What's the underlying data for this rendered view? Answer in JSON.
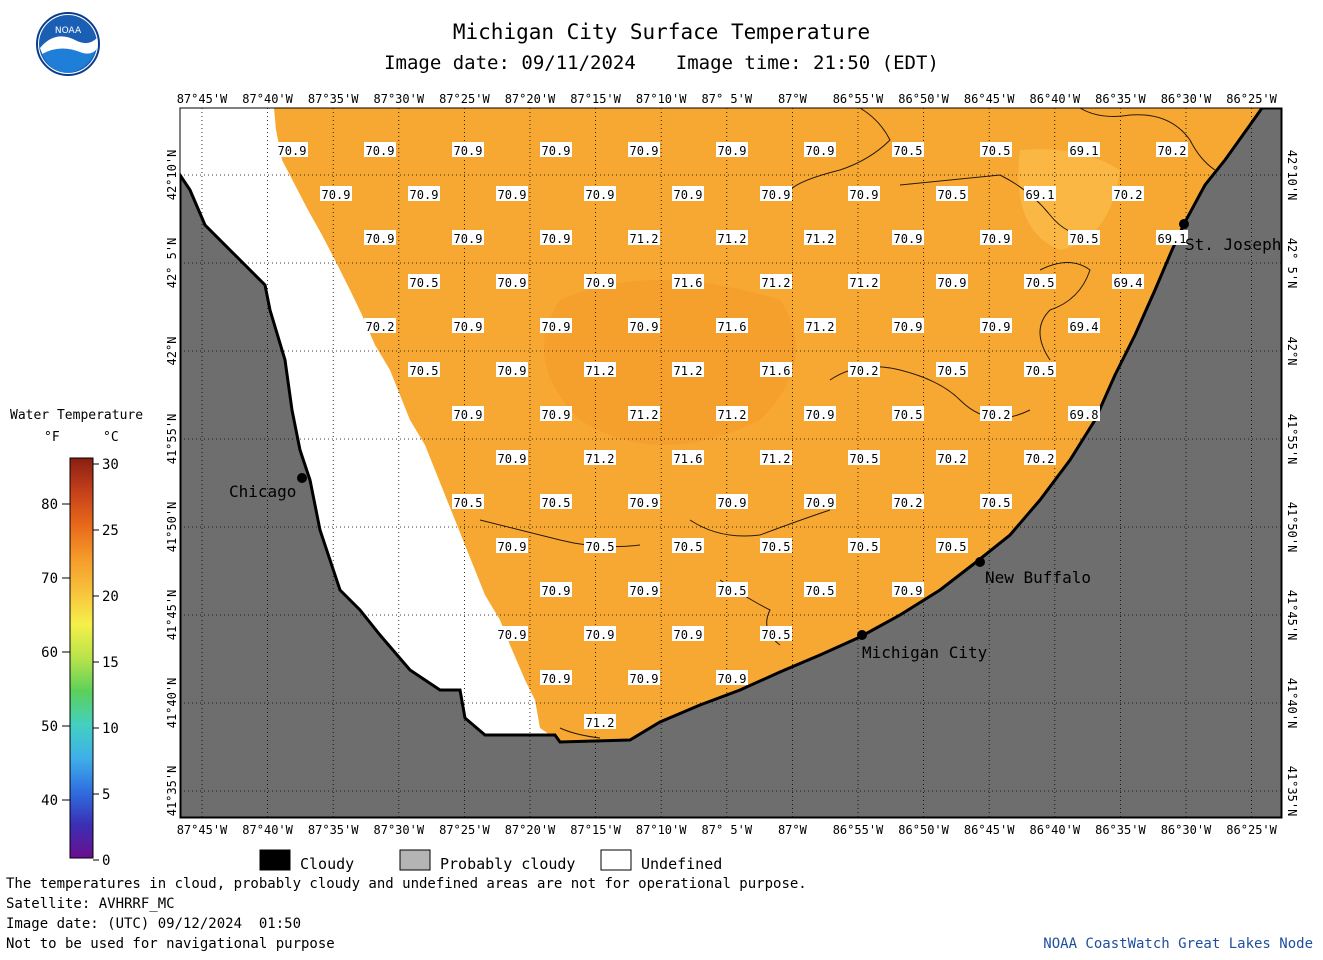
{
  "header": {
    "title": "Michigan City Surface Temperature",
    "image_date": "Image date: 09/11/2024",
    "image_time": "Image time: 21:50 (EDT)"
  },
  "logo": {
    "text": "NOAA",
    "icon": "noaa-logo-icon",
    "color": "#1a5fb4"
  },
  "axes": {
    "lon_labels": [
      "87°45'W",
      "87°40'W",
      "87°35'W",
      "87°30'W",
      "87°25'W",
      "87°20'W",
      "87°15'W",
      "87°10'W",
      "87° 5'W",
      "87°W",
      "86°55'W",
      "86°50'W",
      "86°45'W",
      "86°40'W",
      "86°35'W",
      "86°30'W",
      "86°25'W"
    ],
    "lat_labels": [
      "42°10'N",
      "42° 5'N",
      "42°N",
      "41°55'N",
      "41°50'N",
      "41°45'N",
      "41°40'N",
      "41°35'N"
    ]
  },
  "cities": [
    {
      "name": "Chicago"
    },
    {
      "name": "St. Joseph"
    },
    {
      "name": "New Buffalo"
    },
    {
      "name": "Michigan City"
    }
  ],
  "temperature_labels": [
    [
      "70.9",
      "70.9",
      "70.9",
      "70.9",
      "70.9",
      "70.9",
      "70.9",
      "70.5",
      "70.5",
      "69.1",
      "70.2"
    ],
    [
      "70.9",
      "70.9",
      "70.9",
      "70.9",
      "70.9",
      "70.9",
      "70.9",
      "70.5",
      "69.1",
      "70.2"
    ],
    [
      "70.9",
      "70.9",
      "70.9",
      "71.2",
      "71.2",
      "71.2",
      "70.9",
      "70.9",
      "70.5",
      "69.1"
    ],
    [
      "70.5",
      "70.9",
      "70.9",
      "71.6",
      "71.2",
      "71.2",
      "70.9",
      "70.5",
      "69.4"
    ],
    [
      "70.2",
      "70.9",
      "70.9",
      "70.9",
      "71.6",
      "71.2",
      "70.9",
      "70.9",
      "69.4"
    ],
    [
      "70.5",
      "70.9",
      "71.2",
      "71.2",
      "71.6",
      "70.2",
      "70.5",
      "70.5"
    ],
    [
      "70.9",
      "70.9",
      "71.2",
      "71.2",
      "70.9",
      "70.5",
      "70.2",
      "69.8"
    ],
    [
      "70.9",
      "71.2",
      "71.6",
      "71.2",
      "70.5",
      "70.2",
      "70.2"
    ],
    [
      "70.5",
      "70.5",
      "70.9",
      "70.9",
      "70.9",
      "70.2",
      "70.5"
    ],
    [
      "70.9",
      "70.5",
      "70.5",
      "70.5",
      "70.5",
      "70.5"
    ],
    [
      "70.9",
      "70.9",
      "70.5",
      "70.5",
      "70.9"
    ],
    [
      "70.9",
      "70.9",
      "70.9",
      "70.5"
    ],
    [
      "70.9",
      "70.9",
      "70.9"
    ],
    [
      "71.2"
    ]
  ],
  "colorbar": {
    "title": "Water Temperature",
    "unit_f": "°F",
    "unit_c": "°C",
    "f_ticks": [
      "80",
      "70",
      "60",
      "50",
      "40"
    ],
    "c_ticks": [
      "30",
      "25",
      "20",
      "15",
      "10",
      "5",
      "0"
    ],
    "colors": [
      "#6a0f8e",
      "#3b2fb5",
      "#2f6fe0",
      "#3fb0e8",
      "#43d0c0",
      "#5cd05a",
      "#b8e34a",
      "#f5f04a",
      "#f8c23c",
      "#f59a2a",
      "#e8681a",
      "#c4401a",
      "#8a1e12"
    ]
  },
  "legend": {
    "items": [
      {
        "label": "Cloudy",
        "color": "#000000"
      },
      {
        "label": "Probably cloudy",
        "color": "#b4b4b4"
      },
      {
        "label": "Undefined",
        "color": "#ffffff"
      }
    ]
  },
  "footer": {
    "disclaimer": "The temperatures in cloud, probably cloudy and undefined areas are not for operational purpose.",
    "satellite": "Satellite: AVHRRF_MC",
    "utc_date": "Image date: (UTC) 09/12/2024  01:50",
    "navigation": "Not to be used for navigational purpose",
    "credit": "NOAA CoastWatch Great Lakes Node"
  },
  "colors": {
    "water": "#f7a833",
    "land": "#6e6e6e",
    "undefined": "#ffffff"
  }
}
